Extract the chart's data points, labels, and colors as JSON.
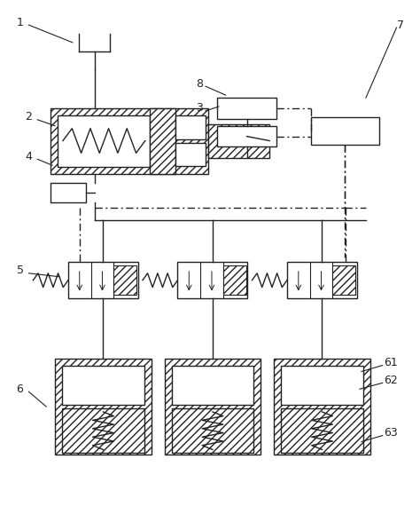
{
  "bg_color": "#ffffff",
  "line_color": "#222222",
  "figsize": [
    4.74,
    5.79
  ],
  "dpi": 100
}
